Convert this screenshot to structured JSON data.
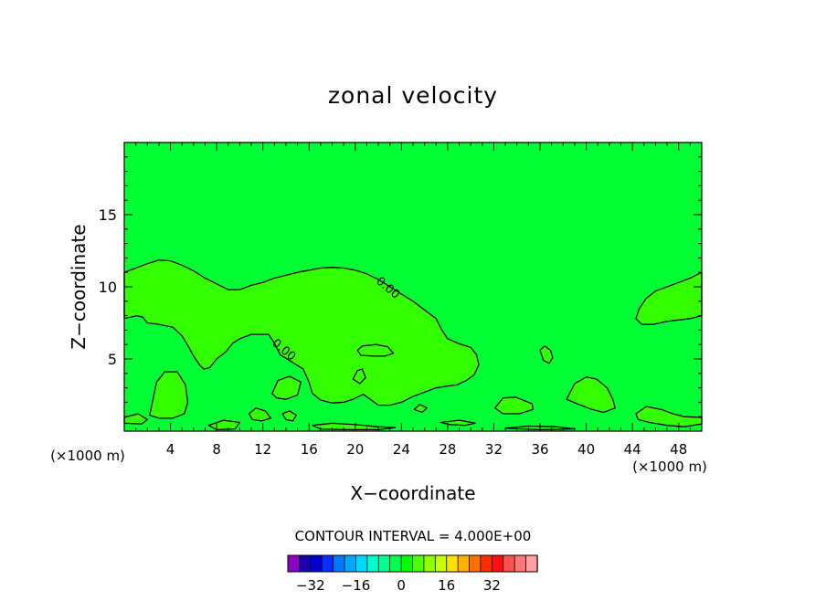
{
  "chart_data": {
    "type": "contour",
    "title": "zonal velocity",
    "xlabel": "X−coordinate",
    "ylabel": "Z−coordinate",
    "x_unit_left": "(×1000 m)",
    "x_unit_right": "(×1000 m)",
    "xlim": [
      0,
      50
    ],
    "ylim": [
      0,
      20
    ],
    "xticks": [
      4,
      8,
      12,
      16,
      20,
      24,
      28,
      32,
      36,
      40,
      44,
      48
    ],
    "xtick_labels": [
      "4",
      "8",
      "12",
      "16",
      "20",
      "24",
      "28",
      "32",
      "36",
      "40",
      "44",
      "48"
    ],
    "yticks": [
      5,
      10,
      15
    ],
    "ytick_labels": [
      "5",
      "10",
      "15"
    ],
    "background_fill_color": "#00ff33",
    "region_fill_color": "#33ff00",
    "contour_labels": [
      {
        "text": "0.00",
        "x": 22.8,
        "z": 9.9
      },
      {
        "text": "0.00",
        "x": 13.8,
        "z": 5.6
      }
    ],
    "contour_interval_text": "CONTOUR INTERVAL = 4.000E+00",
    "colorbar": {
      "colors": [
        "#8a00c4",
        "#1a00b0",
        "#0000d0",
        "#0030ff",
        "#0078ff",
        "#00a8ff",
        "#00d8ff",
        "#00ffd0",
        "#00ff90",
        "#00ff50",
        "#00ff00",
        "#50ff00",
        "#90ff00",
        "#c8ff00",
        "#ffe000",
        "#ffb000",
        "#ff7000",
        "#ff3000",
        "#ff1010",
        "#ff5050",
        "#ff7878",
        "#ffa0a0"
      ],
      "tick_values": [
        -32,
        -16,
        0,
        16,
        32
      ],
      "tick_labels": [
        "−32",
        "−16",
        "0",
        "16",
        "32"
      ]
    },
    "regions": [
      {
        "name": "main-region",
        "points": [
          [
            0,
            11.0
          ],
          [
            1,
            11.3
          ],
          [
            2,
            11.6
          ],
          [
            3,
            11.85
          ],
          [
            4,
            11.8
          ],
          [
            5,
            11.5
          ],
          [
            6,
            11.1
          ],
          [
            7,
            10.6
          ],
          [
            8,
            10.2
          ],
          [
            9,
            9.8
          ],
          [
            10,
            9.8
          ],
          [
            11,
            10.1
          ],
          [
            12,
            10.3
          ],
          [
            13,
            10.6
          ],
          [
            14,
            10.8
          ],
          [
            15,
            11.0
          ],
          [
            16,
            11.15
          ],
          [
            17,
            11.3
          ],
          [
            18,
            11.35
          ],
          [
            19,
            11.3
          ],
          [
            20,
            11.15
          ],
          [
            21,
            10.9
          ],
          [
            22,
            10.5
          ],
          [
            23,
            10.0
          ],
          [
            24,
            9.5
          ],
          [
            25,
            9.0
          ],
          [
            26,
            8.4
          ],
          [
            27,
            7.8
          ],
          [
            27.5,
            7.0
          ],
          [
            28,
            6.4
          ],
          [
            29,
            6.05
          ],
          [
            30,
            5.8
          ],
          [
            30.5,
            5.3
          ],
          [
            30.7,
            4.6
          ],
          [
            30.3,
            3.9
          ],
          [
            29.6,
            3.5
          ],
          [
            28.8,
            3.2
          ],
          [
            27.8,
            3.1
          ],
          [
            27,
            3.0
          ],
          [
            26,
            2.7
          ],
          [
            25,
            2.4
          ],
          [
            24,
            2.0
          ],
          [
            23,
            1.8
          ],
          [
            22,
            1.8
          ],
          [
            21.3,
            2.2
          ],
          [
            20.7,
            2.55
          ],
          [
            19.8,
            2.2
          ],
          [
            19,
            2.0
          ],
          [
            18,
            1.95
          ],
          [
            17,
            2.15
          ],
          [
            16.3,
            2.6
          ],
          [
            16,
            3.4
          ],
          [
            15.5,
            4.3
          ],
          [
            14.5,
            4.8
          ],
          [
            13.5,
            5.3
          ],
          [
            13,
            6.1
          ],
          [
            12.5,
            6.7
          ],
          [
            11,
            6.7
          ],
          [
            10,
            6.4
          ],
          [
            9.4,
            6.1
          ],
          [
            8.8,
            5.5
          ],
          [
            8,
            5.0
          ],
          [
            7.4,
            4.4
          ],
          [
            6.9,
            4.3
          ],
          [
            6.5,
            4.6
          ],
          [
            6,
            5.2
          ],
          [
            5.6,
            5.8
          ],
          [
            5,
            6.6
          ],
          [
            4.2,
            7.2
          ],
          [
            3,
            7.4
          ],
          [
            2,
            7.5
          ],
          [
            1.6,
            7.9
          ],
          [
            1.1,
            8.0
          ],
          [
            0,
            7.8
          ]
        ]
      },
      {
        "name": "island-right-upper",
        "points": [
          [
            44.8,
            7.4
          ],
          [
            45.8,
            7.4
          ],
          [
            47,
            7.6
          ],
          [
            48,
            7.7
          ],
          [
            49,
            7.8
          ],
          [
            50,
            8.0
          ],
          [
            50,
            11.0
          ],
          [
            49,
            10.6
          ],
          [
            48,
            10.3
          ],
          [
            47,
            10.0
          ],
          [
            46,
            9.7
          ],
          [
            45.2,
            9.2
          ],
          [
            44.6,
            8.5
          ],
          [
            44.3,
            7.8
          ]
        ]
      },
      {
        "name": "island-20-5.5",
        "points": [
          [
            20.2,
            5.6
          ],
          [
            20.6,
            5.9
          ],
          [
            21.8,
            6.0
          ],
          [
            22.8,
            5.85
          ],
          [
            23.3,
            5.4
          ],
          [
            22.6,
            5.2
          ],
          [
            21.6,
            5.2
          ],
          [
            20.5,
            5.25
          ]
        ]
      },
      {
        "name": "island-36.5-5.3",
        "points": [
          [
            36,
            5.6
          ],
          [
            36.4,
            5.9
          ],
          [
            36.9,
            5.6
          ],
          [
            37.1,
            5.1
          ],
          [
            36.8,
            4.7
          ],
          [
            36.3,
            4.9
          ]
        ]
      },
      {
        "name": "island-20.2-3.8",
        "points": [
          [
            19.8,
            3.6
          ],
          [
            20.2,
            4.2
          ],
          [
            20.6,
            4.3
          ],
          [
            20.9,
            3.7
          ],
          [
            20.4,
            3.3
          ]
        ]
      },
      {
        "name": "island-14-3",
        "points": [
          [
            12.8,
            2.6
          ],
          [
            13.3,
            3.5
          ],
          [
            14.3,
            3.8
          ],
          [
            15.3,
            3.4
          ],
          [
            15.0,
            2.5
          ],
          [
            14.0,
            2.2
          ],
          [
            13.2,
            2.3
          ]
        ]
      },
      {
        "name": "island-3.5-2.5",
        "points": [
          [
            2.2,
            1.1
          ],
          [
            2.8,
            3.4
          ],
          [
            3.5,
            4.1
          ],
          [
            4.6,
            4.1
          ],
          [
            5.3,
            3.2
          ],
          [
            5.5,
            2.0
          ],
          [
            5.2,
            1.2
          ],
          [
            4.2,
            0.9
          ],
          [
            3.0,
            0.9
          ]
        ]
      },
      {
        "name": "island-40.5-2.5",
        "points": [
          [
            38.3,
            2.2
          ],
          [
            39,
            3.3
          ],
          [
            40,
            3.75
          ],
          [
            40.9,
            3.6
          ],
          [
            41.8,
            3.0
          ],
          [
            42.3,
            2.2
          ],
          [
            42.5,
            1.6
          ],
          [
            41.5,
            1.3
          ],
          [
            40.5,
            1.5
          ],
          [
            39.2,
            1.9
          ]
        ]
      },
      {
        "name": "island-33.5-1.9",
        "points": [
          [
            32.1,
            1.6
          ],
          [
            32.8,
            2.3
          ],
          [
            33.9,
            2.35
          ],
          [
            35.3,
            1.9
          ],
          [
            35.4,
            1.5
          ],
          [
            34.2,
            1.2
          ],
          [
            32.8,
            1.2
          ]
        ]
      },
      {
        "name": "island-right-lower",
        "points": [
          [
            44.3,
            1.2
          ],
          [
            45.2,
            1.7
          ],
          [
            46.5,
            1.5
          ],
          [
            47.5,
            1.2
          ],
          [
            48.5,
            1.0
          ],
          [
            50,
            0.95
          ],
          [
            50,
            0.5
          ],
          [
            48.5,
            0.3
          ],
          [
            47,
            0.4
          ],
          [
            45.5,
            0.6
          ],
          [
            44.5,
            0.8
          ]
        ]
      },
      {
        "name": "strip-left-bottom",
        "points": [
          [
            0,
            0.95
          ],
          [
            1.2,
            1.2
          ],
          [
            2.0,
            0.8
          ],
          [
            1.5,
            0.5
          ],
          [
            0,
            0.55
          ]
        ]
      },
      {
        "name": "island-11.5-1.1",
        "points": [
          [
            10.8,
            1.2
          ],
          [
            11.4,
            1.6
          ],
          [
            12.2,
            1.4
          ],
          [
            12.7,
            0.9
          ],
          [
            11.9,
            0.7
          ],
          [
            11.1,
            0.8
          ]
        ]
      },
      {
        "name": "island-14.5-1.0",
        "points": [
          [
            13.7,
            1.2
          ],
          [
            14.3,
            1.4
          ],
          [
            14.9,
            1.1
          ],
          [
            14.6,
            0.7
          ],
          [
            14.0,
            0.8
          ]
        ]
      },
      {
        "name": "island-8.5-0.2",
        "points": [
          [
            7.3,
            0.4
          ],
          [
            8.6,
            0.75
          ],
          [
            10,
            0.6
          ],
          [
            9.6,
            0.15
          ],
          [
            8.0,
            0.1
          ]
        ]
      },
      {
        "name": "strip-18-0.5",
        "points": [
          [
            16.3,
            0.4
          ],
          [
            18,
            0.55
          ],
          [
            20,
            0.45
          ],
          [
            22,
            0.3
          ],
          [
            23.5,
            0.25
          ],
          [
            22,
            0.1
          ],
          [
            19,
            0.1
          ],
          [
            17,
            0.15
          ]
        ]
      },
      {
        "name": "island-25.7-1.6",
        "points": [
          [
            25.1,
            1.5
          ],
          [
            25.6,
            1.85
          ],
          [
            26.2,
            1.6
          ],
          [
            25.8,
            1.3
          ]
        ]
      },
      {
        "name": "strip-29-0.6",
        "points": [
          [
            27.4,
            0.6
          ],
          [
            29,
            0.75
          ],
          [
            30.4,
            0.55
          ],
          [
            29.5,
            0.4
          ],
          [
            28.2,
            0.45
          ]
        ]
      },
      {
        "name": "strip-36-0.3",
        "points": [
          [
            33,
            0.2
          ],
          [
            35,
            0.35
          ],
          [
            37.5,
            0.3
          ],
          [
            39,
            0.15
          ],
          [
            36,
            0.1
          ]
        ]
      }
    ]
  }
}
